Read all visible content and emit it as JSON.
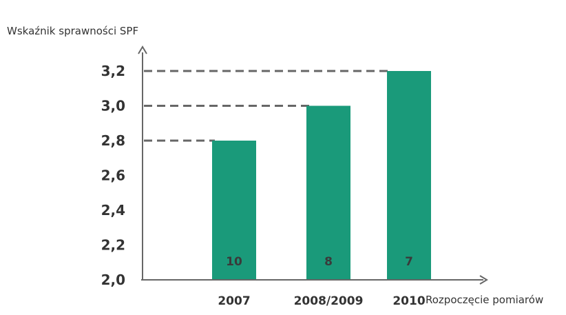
{
  "chart_data": {
    "type": "bar",
    "ylabel": "Wskaźnik sprawności SPF",
    "xlabel": "Rozpoczęcie pomiarów",
    "categories": [
      "2007",
      "2008/2009",
      "2010"
    ],
    "values": [
      2.8,
      3.0,
      3.2
    ],
    "bar_labels": [
      "10",
      "8",
      "7"
    ],
    "yticks": [
      "2,0",
      "2,2",
      "2,4",
      "2,6",
      "2,8",
      "3,0",
      "3,2"
    ],
    "ylim": [
      2.0,
      3.2
    ],
    "grid": false,
    "reference_lines": [
      2.8,
      3.0,
      3.2
    ],
    "colors": {
      "bar": "#1a9a7a",
      "axis": "#666666",
      "dash": "#666666",
      "text": "#333333"
    }
  }
}
